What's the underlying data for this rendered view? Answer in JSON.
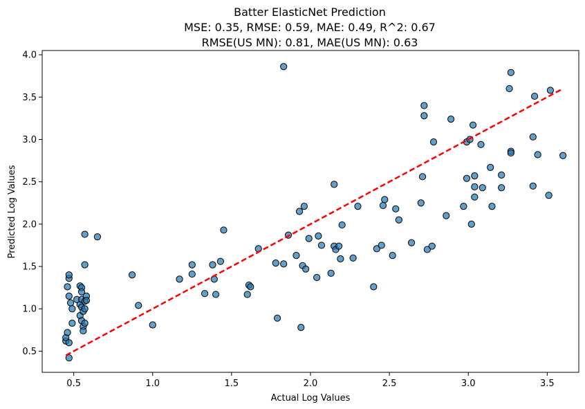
{
  "chart_data": {
    "type": "scatter",
    "title_lines": [
      "Batter ElasticNet Prediction",
      "MSE: 0.35, RMSE: 0.59, MAE: 0.49, R^2: 0.67",
      "RMSE(US MN): 0.81, MAE(US MN): 0.63"
    ],
    "xlabel": "Actual Log Values",
    "ylabel": "Predicted Log Values",
    "xlim": [
      0.3,
      3.7
    ],
    "ylim": [
      0.25,
      4.05
    ],
    "xticks": [
      0.5,
      1.0,
      1.5,
      2.0,
      2.5,
      3.0,
      3.5
    ],
    "xtick_labels": [
      "0.5",
      "1.0",
      "1.5",
      "2.0",
      "2.5",
      "3.0",
      "3.5"
    ],
    "yticks": [
      0.5,
      1.0,
      1.5,
      2.0,
      2.5,
      3.0,
      3.5,
      4.0
    ],
    "ytick_labels": [
      "0.5",
      "1.0",
      "1.5",
      "2.0",
      "2.5",
      "3.0",
      "3.5",
      "4.0"
    ],
    "colors": {
      "points": "#1f77b4",
      "reference": "#ff0000",
      "edge": "#000000"
    },
    "reference_line": {
      "from": [
        0.45,
        0.45
      ],
      "to": [
        3.6,
        3.6
      ],
      "style": "dashed"
    },
    "points": [
      [
        0.45,
        0.62
      ],
      [
        0.45,
        0.66
      ],
      [
        0.46,
        0.72
      ],
      [
        0.47,
        0.6
      ],
      [
        0.47,
        0.42
      ],
      [
        0.46,
        1.26
      ],
      [
        0.47,
        1.36
      ],
      [
        0.47,
        1.4
      ],
      [
        0.47,
        1.15
      ],
      [
        0.48,
        1.07
      ],
      [
        0.49,
        1.0
      ],
      [
        0.49,
        0.83
      ],
      [
        0.52,
        1.11
      ],
      [
        0.54,
        1.27
      ],
      [
        0.54,
        1.05
      ],
      [
        0.55,
        1.25
      ],
      [
        0.55,
        1.2
      ],
      [
        0.55,
        1.11
      ],
      [
        0.55,
        1.02
      ],
      [
        0.54,
        0.92
      ],
      [
        0.55,
        0.86
      ],
      [
        0.56,
        0.79
      ],
      [
        0.56,
        0.74
      ],
      [
        0.57,
        0.83
      ],
      [
        0.56,
        0.97
      ],
      [
        0.57,
        1.0
      ],
      [
        0.57,
        1.09
      ],
      [
        0.58,
        1.15
      ],
      [
        0.58,
        1.1
      ],
      [
        0.57,
        1.52
      ],
      [
        0.57,
        1.88
      ],
      [
        0.65,
        1.85
      ],
      [
        0.87,
        1.4
      ],
      [
        0.91,
        1.04
      ],
      [
        1.0,
        0.81
      ],
      [
        1.17,
        1.35
      ],
      [
        1.25,
        1.52
      ],
      [
        1.25,
        1.41
      ],
      [
        1.33,
        1.18
      ],
      [
        1.38,
        1.52
      ],
      [
        1.39,
        1.35
      ],
      [
        1.4,
        1.17
      ],
      [
        1.43,
        1.56
      ],
      [
        1.45,
        1.93
      ],
      [
        1.6,
        1.17
      ],
      [
        1.61,
        1.28
      ],
      [
        1.62,
        1.26
      ],
      [
        1.67,
        1.71
      ],
      [
        1.78,
        1.54
      ],
      [
        1.79,
        0.89
      ],
      [
        1.83,
        3.86
      ],
      [
        1.83,
        1.53
      ],
      [
        1.86,
        1.87
      ],
      [
        1.91,
        1.63
      ],
      [
        1.93,
        2.15
      ],
      [
        1.94,
        0.78
      ],
      [
        1.95,
        1.51
      ],
      [
        1.96,
        2.21
      ],
      [
        1.97,
        1.47
      ],
      [
        1.99,
        1.83
      ],
      [
        2.04,
        1.37
      ],
      [
        2.05,
        1.86
      ],
      [
        2.07,
        1.75
      ],
      [
        2.13,
        1.42
      ],
      [
        2.15,
        1.74
      ],
      [
        2.15,
        2.47
      ],
      [
        2.16,
        1.7
      ],
      [
        2.18,
        1.74
      ],
      [
        2.19,
        1.59
      ],
      [
        2.2,
        1.99
      ],
      [
        2.27,
        1.6
      ],
      [
        2.3,
        2.21
      ],
      [
        2.4,
        1.26
      ],
      [
        2.42,
        1.71
      ],
      [
        2.45,
        1.75
      ],
      [
        2.46,
        2.22
      ],
      [
        2.47,
        2.29
      ],
      [
        2.52,
        1.63
      ],
      [
        2.54,
        2.18
      ],
      [
        2.56,
        2.05
      ],
      [
        2.64,
        1.78
      ],
      [
        2.7,
        2.25
      ],
      [
        2.71,
        2.56
      ],
      [
        2.72,
        3.4
      ],
      [
        2.72,
        3.28
      ],
      [
        2.74,
        1.7
      ],
      [
        2.77,
        1.74
      ],
      [
        2.78,
        2.97
      ],
      [
        2.86,
        2.1
      ],
      [
        2.89,
        3.24
      ],
      [
        2.97,
        2.21
      ],
      [
        2.99,
        2.97
      ],
      [
        2.99,
        2.54
      ],
      [
        3.01,
        3.0
      ],
      [
        3.02,
        2.0
      ],
      [
        3.03,
        3.17
      ],
      [
        3.04,
        2.57
      ],
      [
        3.04,
        2.44
      ],
      [
        3.04,
        2.32
      ],
      [
        3.08,
        2.94
      ],
      [
        3.09,
        2.43
      ],
      [
        3.14,
        2.67
      ],
      [
        3.15,
        2.21
      ],
      [
        3.21,
        2.58
      ],
      [
        3.21,
        2.43
      ],
      [
        3.26,
        3.6
      ],
      [
        3.27,
        3.79
      ],
      [
        3.27,
        2.86
      ],
      [
        3.27,
        2.84
      ],
      [
        3.41,
        2.45
      ],
      [
        3.41,
        3.03
      ],
      [
        3.42,
        3.51
      ],
      [
        3.44,
        2.82
      ],
      [
        3.51,
        2.34
      ],
      [
        3.52,
        3.58
      ],
      [
        3.6,
        2.81
      ]
    ]
  }
}
